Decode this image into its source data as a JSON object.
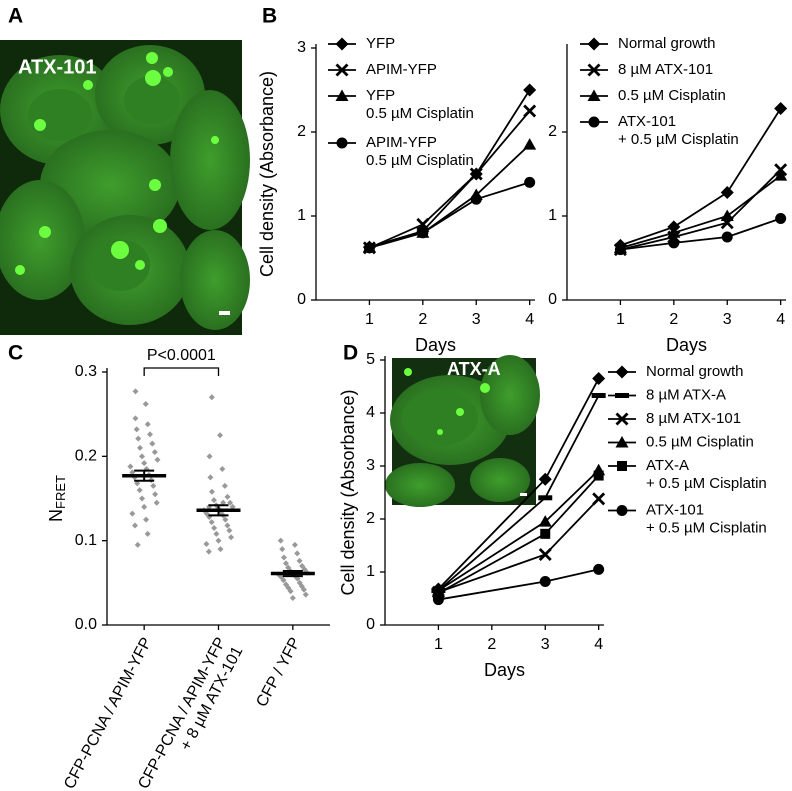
{
  "panel_labels": [
    "A",
    "B",
    "C",
    "D"
  ],
  "image_labels": [
    "ATX-101",
    "ATX-A"
  ],
  "chart_data": [
    {
      "type": "line",
      "ylabel": "Cell density (Absorbance)",
      "xlabel": "Days",
      "color": "#000000",
      "x": [
        1,
        2,
        3,
        4
      ],
      "xlim": [
        0,
        4.1
      ],
      "xticks": [
        1,
        2,
        3,
        4
      ],
      "ylim": [
        0,
        3
      ],
      "yticks": [
        0,
        1,
        2,
        3
      ],
      "series": [
        {
          "name": "YFP",
          "marker": "diamond",
          "values": [
            0.63,
            0.82,
            1.5,
            2.5
          ]
        },
        {
          "name": "APIM-YFP",
          "marker": "x",
          "values": [
            0.62,
            0.9,
            1.5,
            2.25
          ]
        },
        {
          "name": "YFP\n0.5 µM Cisplatin",
          "marker": "triangle",
          "values": [
            0.63,
            0.8,
            1.25,
            1.85
          ]
        },
        {
          "name": "APIM-YFP\n0.5 µM Cisplatin",
          "marker": "circle",
          "values": [
            0.62,
            0.8,
            1.2,
            1.4
          ]
        }
      ]
    },
    {
      "type": "line",
      "xlabel": "Days",
      "color": "#000000",
      "x": [
        1,
        2,
        3,
        4
      ],
      "xlim": [
        0,
        4.1
      ],
      "xticks": [
        1,
        2,
        3,
        4
      ],
      "ylim": [
        0,
        3
      ],
      "yticks": [
        0,
        1,
        2
      ],
      "series": [
        {
          "name": "Normal growth",
          "marker": "diamond",
          "values": [
            0.65,
            0.87,
            1.28,
            2.28
          ]
        },
        {
          "name": "8 µM ATX-101",
          "marker": "x",
          "values": [
            0.6,
            0.75,
            0.92,
            1.55
          ]
        },
        {
          "name": "0.5 µM Cisplatin",
          "marker": "triangle",
          "values": [
            0.62,
            0.8,
            1.0,
            1.48
          ]
        },
        {
          "name": "ATX-101\n+ 0.5 µM Cisplatin",
          "marker": "circle",
          "values": [
            0.6,
            0.68,
            0.75,
            0.97
          ]
        }
      ]
    },
    {
      "type": "strip",
      "ylabel": "N",
      "ylabel_subscript": "FRET",
      "annotation": "P<0.0001",
      "color": "#999999",
      "categories": [
        "CFP-PCNA / APIM-YFP",
        "CFP-PCNA / APIM-YFP\n+ 8 µM ATX-101",
        "CFP / YFP"
      ],
      "ylim": [
        0,
        0.3
      ],
      "yticks": [
        {
          "value": 0,
          "label": "0.0"
        },
        0.1,
        0.2,
        0.3
      ],
      "points": [
        [
          0.277,
          0.262,
          0.245,
          0.238,
          0.232,
          0.226,
          0.221,
          0.215,
          0.21,
          0.205,
          0.2,
          0.196,
          0.192,
          0.188,
          0.185,
          0.181,
          0.178,
          0.175,
          0.172,
          0.168,
          0.165,
          0.16,
          0.155,
          0.15,
          0.145,
          0.14,
          0.132,
          0.125,
          0.118,
          0.108,
          0.095
        ],
        [
          0.27,
          0.225,
          0.2,
          0.185,
          0.175,
          0.165,
          0.158,
          0.152,
          0.148,
          0.145,
          0.142,
          0.14,
          0.138,
          0.136,
          0.134,
          0.132,
          0.13,
          0.128,
          0.125,
          0.122,
          0.118,
          0.115,
          0.112,
          0.108,
          0.104,
          0.1,
          0.096,
          0.09,
          0.087,
          0.145,
          0.14
        ],
        [
          0.1,
          0.095,
          0.09,
          0.085,
          0.08,
          0.076,
          0.073,
          0.07,
          0.068,
          0.066,
          0.064,
          0.062,
          0.061,
          0.06,
          0.058,
          0.057,
          0.055,
          0.053,
          0.05,
          0.048,
          0.046,
          0.044,
          0.042,
          0.04,
          0.036,
          0.032
        ]
      ],
      "means": [
        0.177,
        0.136,
        0.061
      ],
      "sem": [
        0.006,
        0.006,
        0.003
      ]
    },
    {
      "type": "line",
      "ylabel": "Cell density (Absorbance)",
      "xlabel": "Days",
      "color": "#000000",
      "x": [
        1,
        3,
        4
      ],
      "xlim": [
        0,
        4.1
      ],
      "xticks": [
        1,
        2,
        3,
        4
      ],
      "ylim": [
        0,
        5
      ],
      "yticks": [
        0,
        1,
        2,
        3,
        4,
        5
      ],
      "series": [
        {
          "name": "Normal growth",
          "marker": "diamond",
          "values": [
            0.68,
            2.75,
            4.65
          ]
        },
        {
          "name": "8 µM ATX-A",
          "marker": "dash",
          "values": [
            0.65,
            2.4,
            4.33
          ]
        },
        {
          "name": "8 µM ATX-101",
          "marker": "x",
          "values": [
            0.62,
            1.33,
            2.38
          ]
        },
        {
          "name": "0.5 µM Cisplatin",
          "marker": "triangle",
          "values": [
            0.65,
            1.95,
            2.92
          ]
        },
        {
          "name": "ATX-A\n+ 0.5 µM Cisplatin",
          "marker": "square",
          "values": [
            0.6,
            1.72,
            2.82
          ]
        },
        {
          "name": "ATX-101\n+ 0.5 µM Cisplatin",
          "marker": "circle",
          "values": [
            0.48,
            0.82,
            1.05
          ]
        }
      ]
    }
  ]
}
